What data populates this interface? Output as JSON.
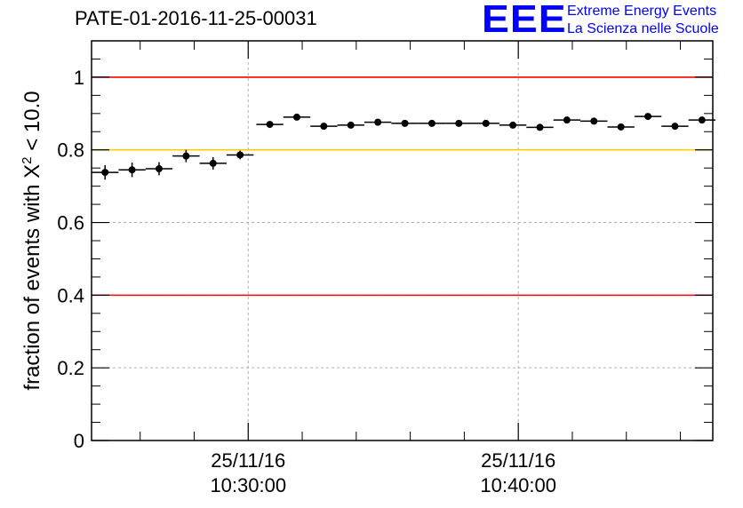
{
  "header": {
    "title": "PATE-01-2016-11-25-00031",
    "logo_mark": "EEE",
    "logo_line1": "Extreme Energy Events",
    "logo_line2": "La Scienza nelle Scuole"
  },
  "chart_data": {
    "type": "scatter",
    "title": "PATE-01-2016-11-25-00031",
    "xlabel": "",
    "ylabel_main": "fraction of events with ",
    "ylabel_chi": "X",
    "ylabel_exp": "2",
    "ylabel_tail": " < 10.0",
    "ylim": [
      0,
      1.1
    ],
    "yticks": [
      0,
      0.2,
      0.4,
      0.6,
      0.8,
      1
    ],
    "ytick_labels": [
      "0",
      "0.2",
      "0.4",
      "0.6",
      "0.8",
      "1"
    ],
    "xlim_minutes": [
      -5.8,
      17.2
    ],
    "xticks_minutes": [
      0,
      10
    ],
    "xtick_labels": [
      [
        "25/11/16",
        "10:30:00"
      ],
      [
        "25/11/16",
        "10:40:00"
      ]
    ],
    "grid": true,
    "reference_lines": [
      {
        "y": 1.0,
        "color": "#ff0000"
      },
      {
        "y": 0.8,
        "color": "#ffcc00"
      },
      {
        "y": 0.4,
        "color": "#ff0000"
      }
    ],
    "points": [
      {
        "x": -5.3,
        "y": 0.738,
        "xerr": 0.5,
        "yerr": 0.02
      },
      {
        "x": -4.3,
        "y": 0.745,
        "xerr": 0.5,
        "yerr": 0.02
      },
      {
        "x": -3.3,
        "y": 0.748,
        "xerr": 0.5,
        "yerr": 0.018
      },
      {
        "x": -2.3,
        "y": 0.783,
        "xerr": 0.5,
        "yerr": 0.017
      },
      {
        "x": -1.3,
        "y": 0.763,
        "xerr": 0.5,
        "yerr": 0.017
      },
      {
        "x": -0.3,
        "y": 0.786,
        "xerr": 0.5,
        "yerr": 0.012
      },
      {
        "x": 0.8,
        "y": 0.87,
        "xerr": 0.5,
        "yerr": 0.008
      },
      {
        "x": 1.8,
        "y": 0.89,
        "xerr": 0.5,
        "yerr": 0.007
      },
      {
        "x": 2.8,
        "y": 0.865,
        "xerr": 0.5,
        "yerr": 0.007
      },
      {
        "x": 3.8,
        "y": 0.868,
        "xerr": 0.5,
        "yerr": 0.007
      },
      {
        "x": 4.8,
        "y": 0.876,
        "xerr": 0.5,
        "yerr": 0.007
      },
      {
        "x": 5.8,
        "y": 0.873,
        "xerr": 0.5,
        "yerr": 0.007
      },
      {
        "x": 6.8,
        "y": 0.873,
        "xerr": 0.5,
        "yerr": 0.007
      },
      {
        "x": 7.8,
        "y": 0.873,
        "xerr": 0.5,
        "yerr": 0.007
      },
      {
        "x": 8.8,
        "y": 0.873,
        "xerr": 0.5,
        "yerr": 0.007
      },
      {
        "x": 9.8,
        "y": 0.868,
        "xerr": 0.5,
        "yerr": 0.007
      },
      {
        "x": 10.8,
        "y": 0.862,
        "xerr": 0.5,
        "yerr": 0.007
      },
      {
        "x": 11.8,
        "y": 0.882,
        "xerr": 0.5,
        "yerr": 0.007
      },
      {
        "x": 12.8,
        "y": 0.879,
        "xerr": 0.5,
        "yerr": 0.007
      },
      {
        "x": 13.8,
        "y": 0.863,
        "xerr": 0.5,
        "yerr": 0.007
      },
      {
        "x": 14.8,
        "y": 0.892,
        "xerr": 0.5,
        "yerr": 0.007
      },
      {
        "x": 15.8,
        "y": 0.865,
        "xerr": 0.5,
        "yerr": 0.007
      },
      {
        "x": 16.8,
        "y": 0.882,
        "xerr": 0.5,
        "yerr": 0.007
      }
    ]
  }
}
